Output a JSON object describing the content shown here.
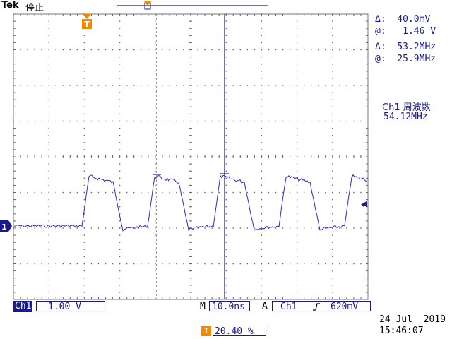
{
  "header": {
    "brand": "Tek",
    "status": "停止"
  },
  "cursor_readouts": {
    "voltage_delta": "Δ:  40.0mV",
    "voltage_at": "@:   1.46 V",
    "freq_delta": "Δ:  53.2MHz",
    "freq_at": "@:  25.9MHz"
  },
  "measurement": {
    "label": "Ch1 周波数",
    "value": "54.12MHz"
  },
  "channel_marker": {
    "label": "1"
  },
  "trigger_marker": {
    "label": "T"
  },
  "bottom": {
    "channel": "Ch1",
    "volts_per_div": "1.00 V",
    "time_prefix": "M",
    "time_per_div": "10.0ns",
    "trigger_prefix": "A",
    "trigger_channel": "Ch1",
    "trigger_slope_icon": "rising-edge-icon",
    "trigger_level": "620mV",
    "trigger_position_badge": "T",
    "trigger_position": "20.40 %",
    "date": "24 Jul  2019",
    "time": "15:46:07"
  },
  "colors": {
    "trace": "#2a2ad0",
    "text": "#1a1a8c",
    "marker": "#f08a00"
  }
}
